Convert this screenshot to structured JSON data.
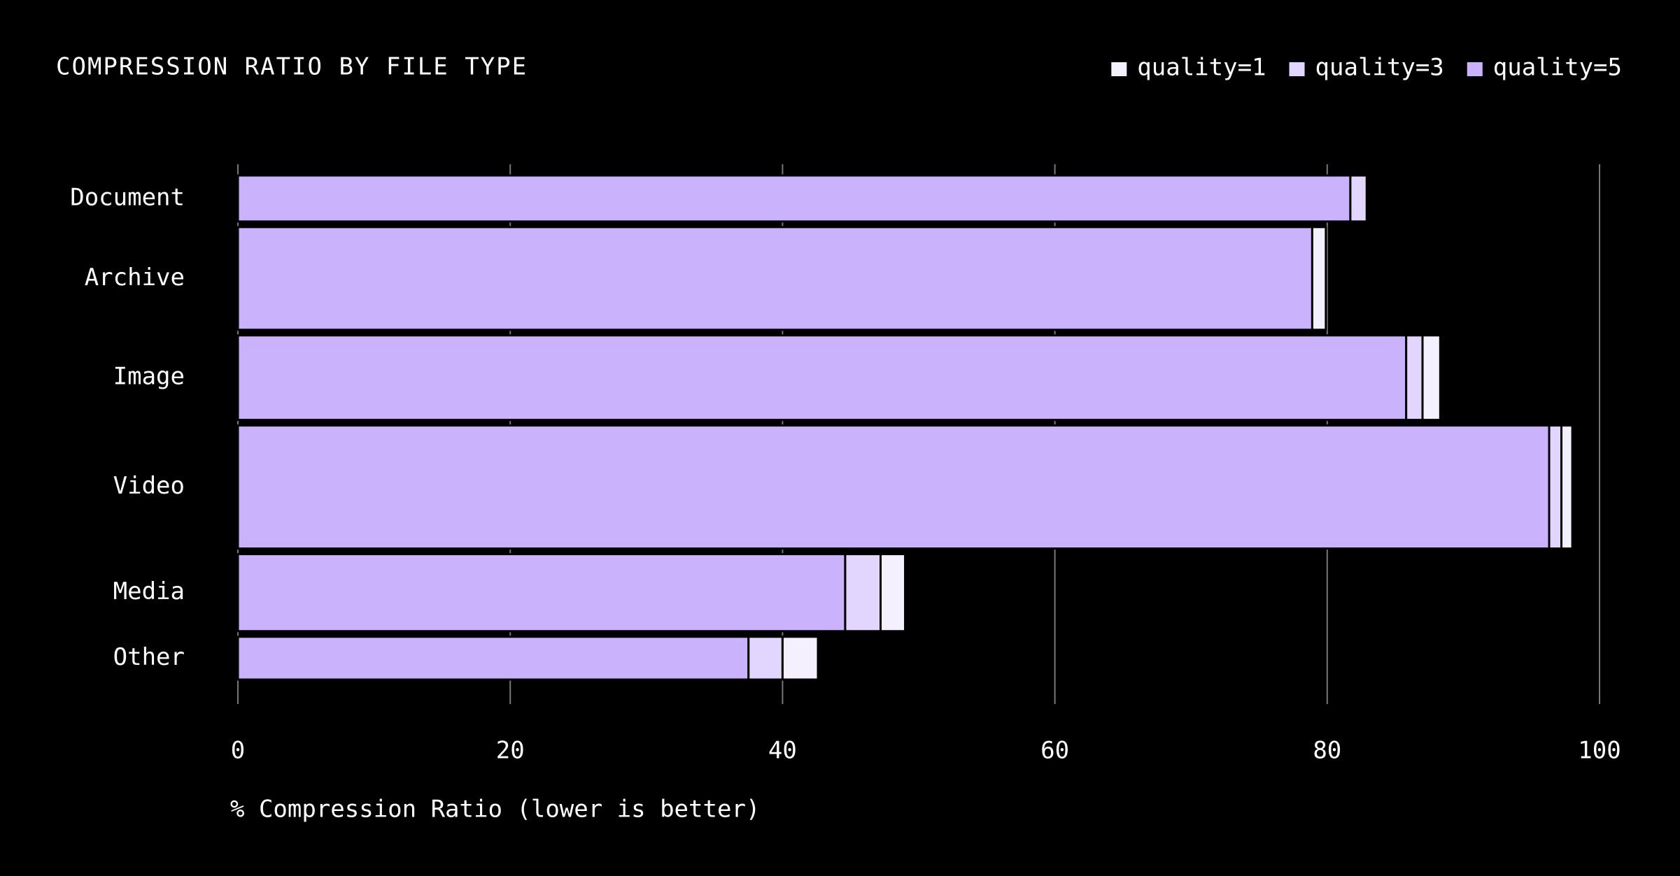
{
  "chart_data": {
    "type": "stacked-bar-horizontal",
    "title": "COMPRESSION RATIO BY FILE TYPE",
    "x_label": "% Compression Ratio (lower is better)",
    "categories": [
      "Document",
      "Archive",
      "Image",
      "Video",
      "Media",
      "Other"
    ],
    "bar_weights": [
      43,
      96,
      79,
      115,
      72,
      40
    ],
    "series": [
      {
        "name": "quality=1",
        "color": "#f4f0fe",
        "values": [
          0,
          1.0,
          1.3,
          0.8,
          1.8,
          2.6
        ]
      },
      {
        "name": "quality=3",
        "color": "#e2d6fe",
        "values": [
          1.2,
          0,
          1.2,
          0.9,
          2.6,
          2.5
        ]
      },
      {
        "name": "quality=5",
        "color": "#cbb2fd",
        "values": [
          81.7,
          78.9,
          85.8,
          96.3,
          44.6,
          37.5
        ]
      }
    ],
    "xlim": [
      0,
      100
    ],
    "xticks": [
      0,
      20,
      40,
      60,
      80,
      100
    ],
    "grid": true,
    "legend": "top-right"
  }
}
